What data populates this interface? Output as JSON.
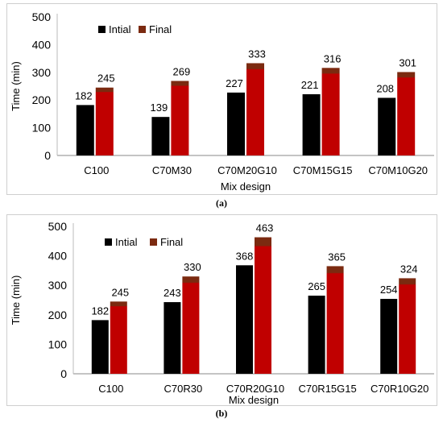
{
  "chart_data": [
    {
      "type": "bar",
      "caption": "(a)",
      "categories": [
        "C100",
        "C70M30",
        "C70M20G10",
        "C70M15G15",
        "C70M10G20"
      ],
      "series": [
        {
          "name": "Intial",
          "values": [
            182,
            139,
            227,
            221,
            208
          ]
        },
        {
          "name": "Final",
          "values": [
            245,
            269,
            333,
            316,
            301
          ]
        }
      ],
      "title": "",
      "xlabel": "Mix design",
      "ylabel": "Time (min)",
      "ylim": [
        0,
        500
      ],
      "yticks": [
        "0",
        "100",
        "200",
        "300",
        "400",
        "500"
      ],
      "legend_position": "top-left",
      "grid": false,
      "colors": {
        "Intial": "#000000",
        "Final": "#c00000",
        "final_top": "#7b2a10"
      }
    },
    {
      "type": "bar",
      "caption": "(b)",
      "categories": [
        "C100",
        "C70R30",
        "C70R20G10",
        "C70R15G15",
        "C70R10G20"
      ],
      "series": [
        {
          "name": "Intial",
          "values": [
            182,
            243,
            368,
            265,
            254
          ]
        },
        {
          "name": "Final",
          "values": [
            245,
            330,
            463,
            365,
            324
          ]
        }
      ],
      "title": "",
      "xlabel": "Mix design",
      "ylabel": "Time (min)",
      "ylim": [
        0,
        500
      ],
      "yticks": [
        "0",
        "100",
        "200",
        "300",
        "400",
        "500"
      ],
      "legend_position": "top-left",
      "grid": false,
      "colors": {
        "Intial": "#000000",
        "Final": "#c00000",
        "final_top": "#7b2a10"
      }
    }
  ]
}
